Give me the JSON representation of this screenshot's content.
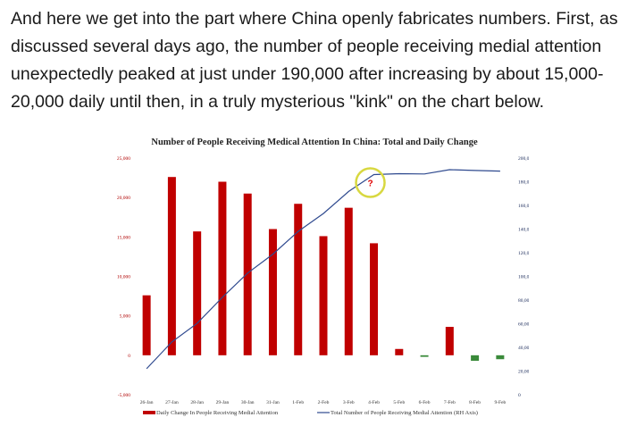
{
  "article": {
    "paragraph": "And here we get into the part where China openly fabricates numbers. First, as discussed several days ago, the number of people receiving medial attention unexpectedly peaked at just under 190,000 after increasing by about 15,000-20,000 daily until then, in a truly mysterious \"kink\" on the chart below."
  },
  "chart_data": {
    "type": "bar",
    "title": "Number of People Receiving Medical Attention In China: Total and Daily Change",
    "categories": [
      "26-Jan",
      "27-Jan",
      "28-Jan",
      "29-Jan",
      "30-Jan",
      "31-Jan",
      "1-Feb",
      "2-Feb",
      "3-Feb",
      "4-Feb",
      "5-Feb",
      "6-Feb",
      "7-Feb",
      "8-Feb",
      "9-Feb"
    ],
    "series": [
      {
        "name": "Daily Change In People Receiving Medial Attention",
        "type": "bar",
        "axis": "left",
        "color": "#c00000",
        "negative_color": "#3a8a3a",
        "values": [
          7600,
          22600,
          15700,
          22000,
          20500,
          16000,
          19200,
          15100,
          18700,
          14200,
          800,
          -200,
          3600,
          -700,
          -500
        ]
      },
      {
        "name": "Total Number of People Receiving Medial Attention (RH Axis)",
        "type": "line",
        "axis": "right",
        "color": "#2f4a8f",
        "values": [
          22000,
          44600,
          60300,
          82300,
          102800,
          118800,
          138000,
          153100,
          171800,
          186000,
          186800,
          186600,
          190200,
          189500,
          189000
        ]
      }
    ],
    "ylim_left": [
      -5000,
      25000
    ],
    "yticks_left": [
      "25,000",
      "20,000",
      "15,000",
      "10,000",
      "5,000",
      "0",
      "-5,000"
    ],
    "yticks_left_values": [
      25000,
      20000,
      15000,
      10000,
      5000,
      0,
      -5000
    ],
    "ylim_right": [
      0,
      200000
    ],
    "yticks_right": [
      "200,000",
      "180,000",
      "160,000",
      "140,000",
      "120,000",
      "100,000",
      "80,000",
      "60,000",
      "40,000",
      "20,000",
      "0"
    ],
    "yticks_right_values": [
      200000,
      180000,
      160000,
      140000,
      120000,
      100000,
      80000,
      60000,
      40000,
      20000,
      0
    ],
    "grid": false,
    "legend_position": "bottom",
    "annotation": {
      "text": "?",
      "category": "4-Feb",
      "value_right": 186000,
      "circle_color": "#d8d840",
      "text_color": "#e00000"
    }
  }
}
